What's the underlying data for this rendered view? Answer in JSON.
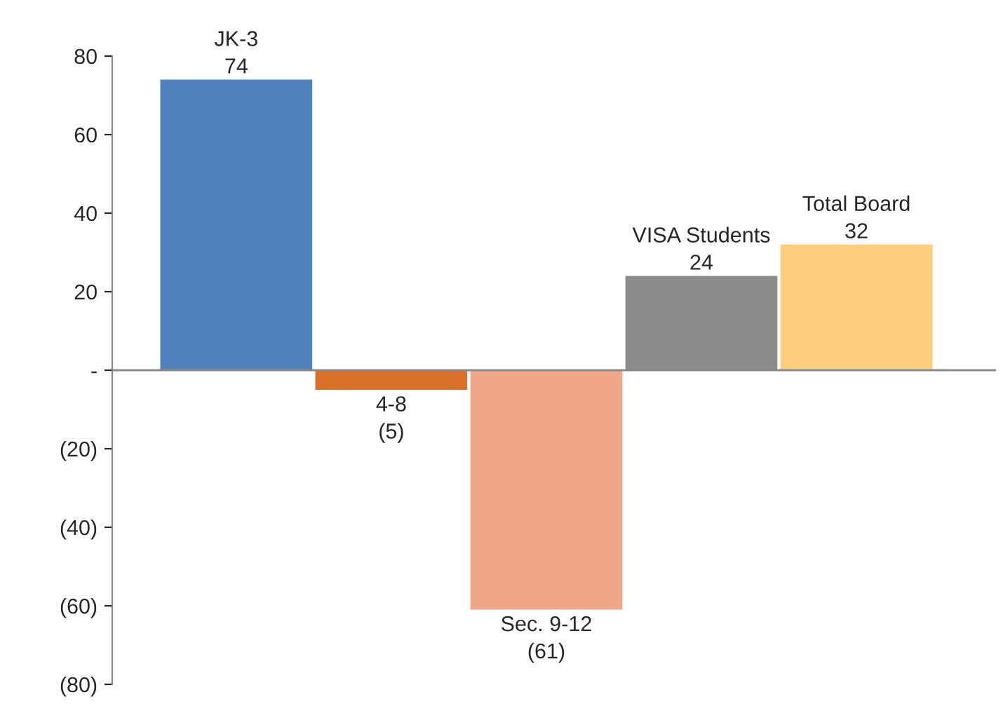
{
  "chart_data": {
    "type": "bar",
    "categories": [
      null,
      null,
      null,
      null,
      null
    ],
    "values": [
      74,
      -5,
      -61,
      24,
      32
    ],
    "value_labels": [
      "74",
      "(5)",
      "(61)",
      "24",
      "32"
    ],
    "annotations": [
      "JK-3",
      "4-8",
      "Sec. 9-12",
      "VISA Students",
      "Total Board"
    ],
    "colors": [
      "#4f81bd",
      "#d9712b",
      "#f0a688",
      "#8c8c8c",
      "#ffcc80"
    ],
    "ylim": [
      -80,
      80
    ],
    "yticks": [
      80,
      60,
      40,
      20,
      {
        "value": 0,
        "label": "-"
      },
      {
        "value": -20,
        "label": "(20)"
      },
      {
        "value": -40,
        "label": "(40)"
      },
      {
        "value": -60,
        "label": "(60)"
      },
      {
        "value": -80,
        "label": "(80)"
      }
    ],
    "tick_labels": "y",
    "ref_lines": [
      {
        "axis": "y",
        "value": 0,
        "color": "#888888"
      }
    ],
    "grid": false,
    "legend": false
  }
}
